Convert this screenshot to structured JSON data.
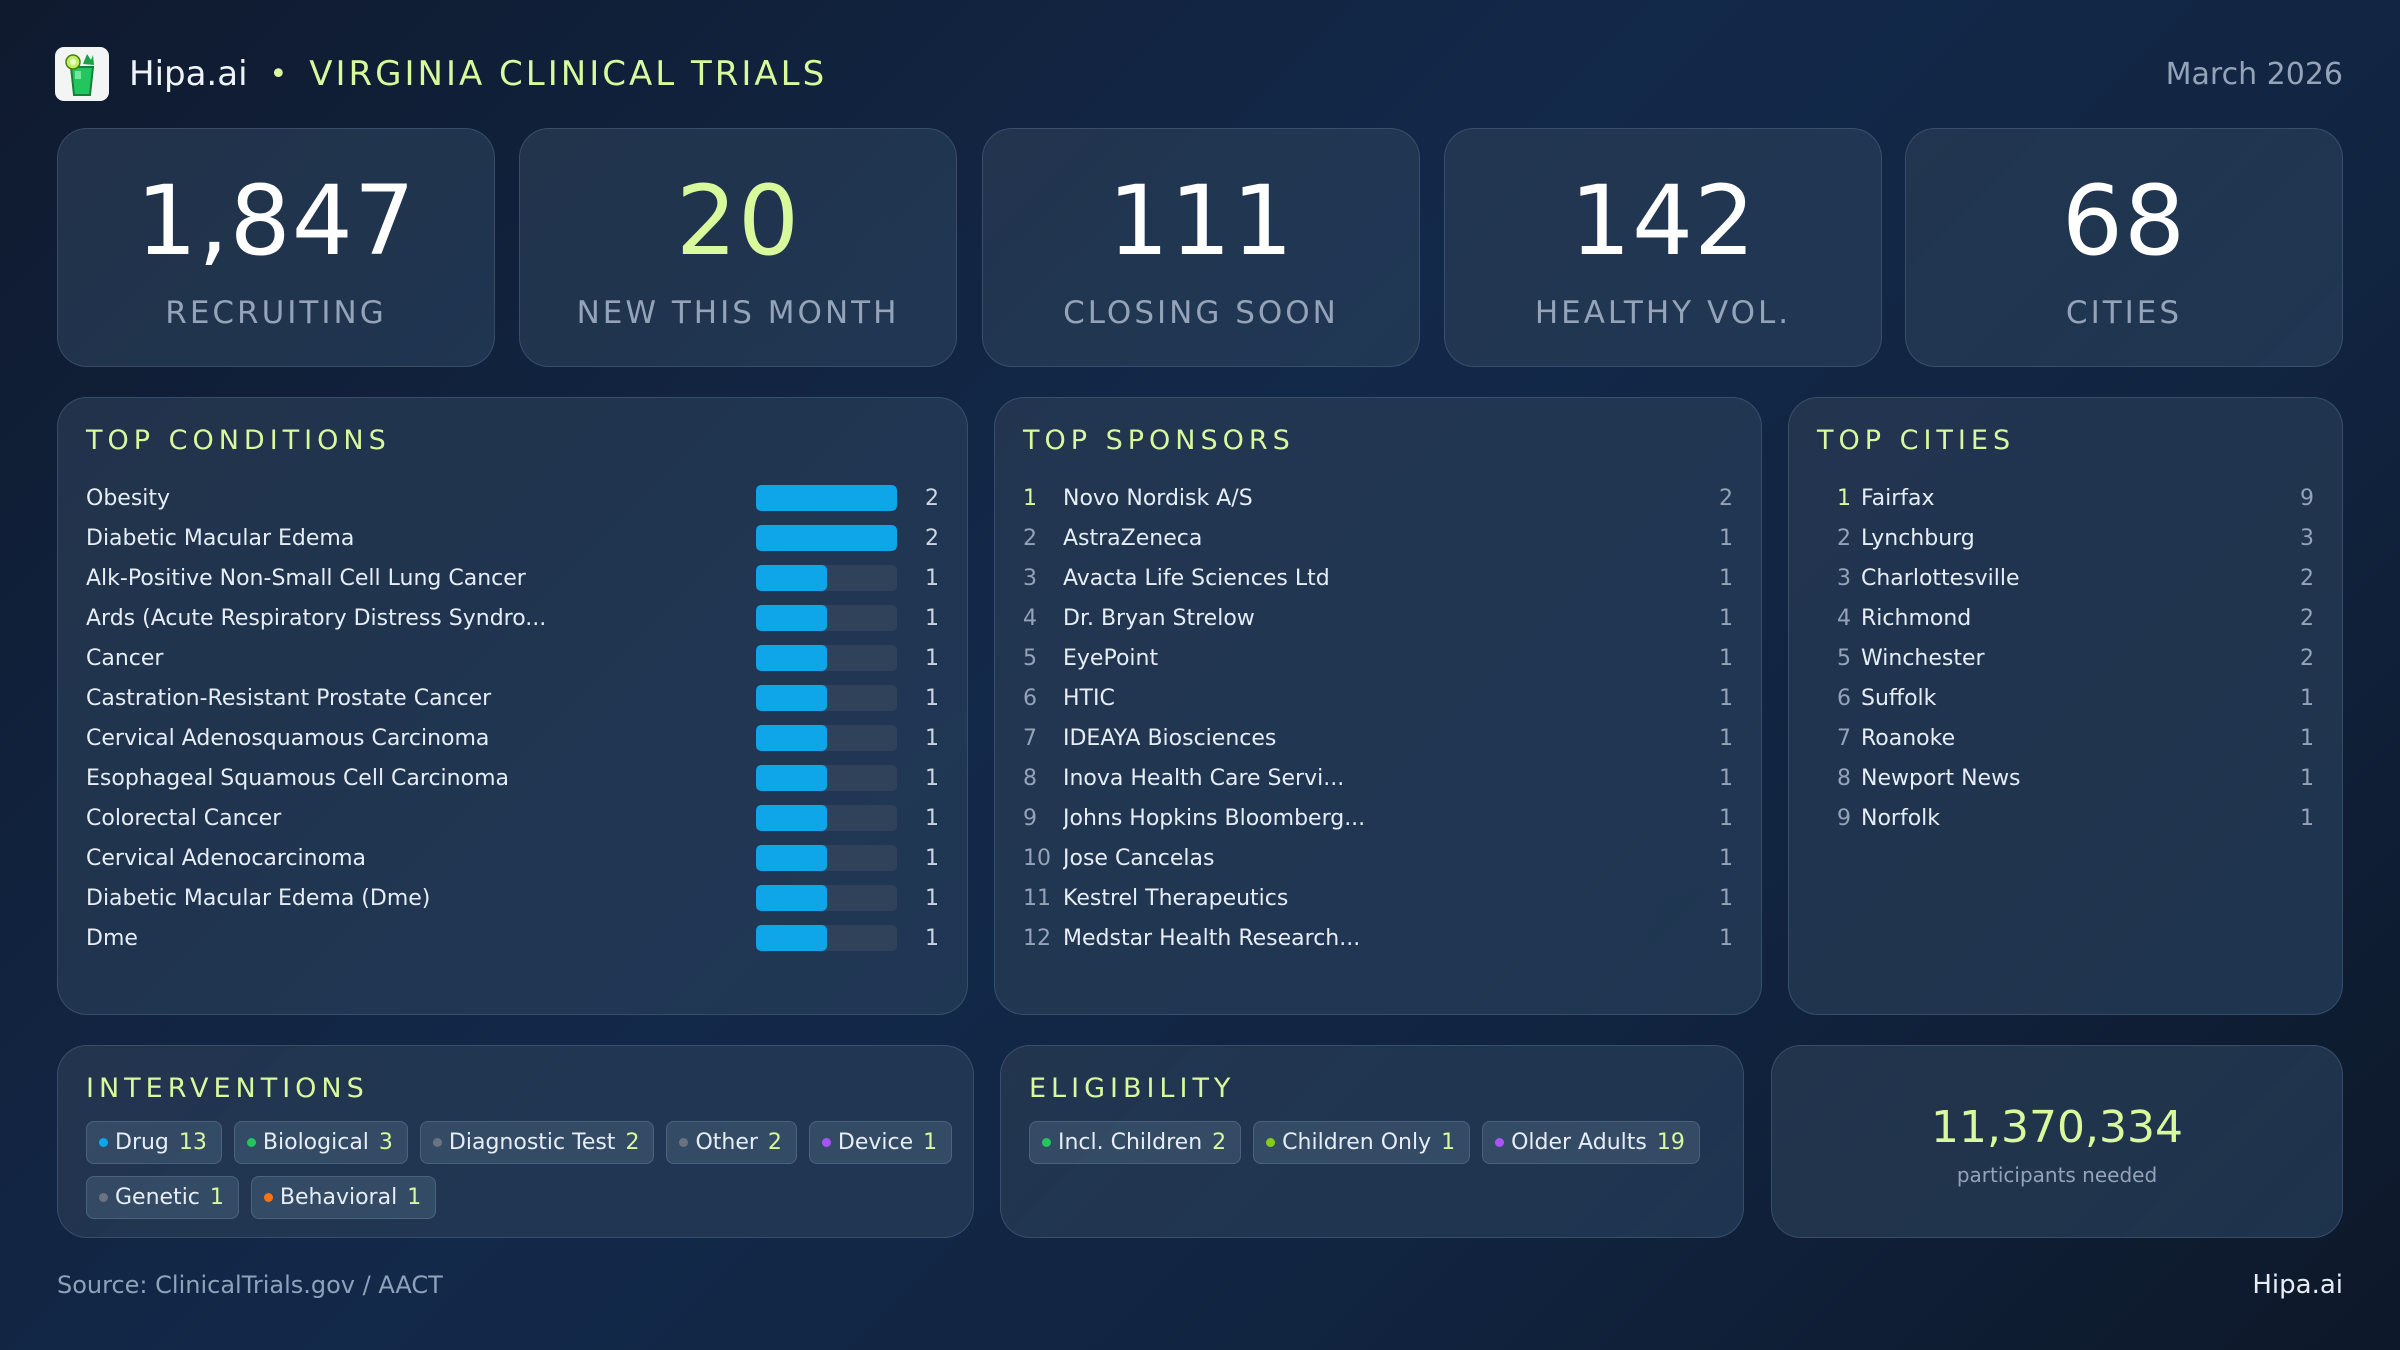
{
  "header": {
    "brand": "Hipa.ai",
    "separator": "•",
    "title": "VIRGINIA CLINICAL TRIALS",
    "date": "March 2026",
    "logo_icon": "mojito-glass-icon"
  },
  "stats": [
    {
      "value": "1,847",
      "label": "RECRUITING"
    },
    {
      "value": "20",
      "label": "NEW THIS MONTH"
    },
    {
      "value": "111",
      "label": "CLOSING SOON"
    },
    {
      "value": "142",
      "label": "HEALTHY VOL."
    },
    {
      "value": "68",
      "label": "CITIES"
    }
  ],
  "conditions": {
    "title": "TOP CONDITIONS",
    "bar_color": "#0ea5e9",
    "max": 2,
    "items": [
      {
        "name": "Obesity",
        "count": 2
      },
      {
        "name": "Diabetic Macular Edema",
        "count": 2
      },
      {
        "name": "Alk-Positive Non-Small Cell Lung Cancer",
        "count": 1
      },
      {
        "name": "Ards (Acute Respiratory Distress Syndro...",
        "count": 1
      },
      {
        "name": "Cancer",
        "count": 1
      },
      {
        "name": "Castration-Resistant Prostate Cancer",
        "count": 1
      },
      {
        "name": "Cervical Adenosquamous Carcinoma",
        "count": 1
      },
      {
        "name": "Esophageal Squamous Cell Carcinoma",
        "count": 1
      },
      {
        "name": "Colorectal Cancer",
        "count": 1
      },
      {
        "name": "Cervical Adenocarcinoma",
        "count": 1
      },
      {
        "name": "Diabetic Macular Edema (Dme)",
        "count": 1
      },
      {
        "name": "Dme",
        "count": 1
      }
    ]
  },
  "sponsors": {
    "title": "TOP SPONSORS",
    "items": [
      {
        "rank": "1",
        "name": "Novo Nordisk A/S",
        "count": 2
      },
      {
        "rank": "2",
        "name": "AstraZeneca",
        "count": 1
      },
      {
        "rank": "3",
        "name": "Avacta Life Sciences Ltd",
        "count": 1
      },
      {
        "rank": "4",
        "name": "Dr. Bryan Strelow",
        "count": 1
      },
      {
        "rank": "5",
        "name": "EyePoint",
        "count": 1
      },
      {
        "rank": "6",
        "name": "HTIC",
        "count": 1
      },
      {
        "rank": "7",
        "name": "IDEAYA Biosciences",
        "count": 1
      },
      {
        "rank": "8",
        "name": "Inova Health Care Servi...",
        "count": 1
      },
      {
        "rank": "9",
        "name": "Johns Hopkins Bloomberg...",
        "count": 1
      },
      {
        "rank": "10",
        "name": "Jose Cancelas",
        "count": 1
      },
      {
        "rank": "11",
        "name": "Kestrel Therapeutics",
        "count": 1
      },
      {
        "rank": "12",
        "name": "Medstar Health Research...",
        "count": 1
      }
    ]
  },
  "cities": {
    "title": "TOP CITIES",
    "items": [
      {
        "rank": "1",
        "name": "Fairfax",
        "count": 9
      },
      {
        "rank": "2",
        "name": "Lynchburg",
        "count": 3
      },
      {
        "rank": "3",
        "name": "Charlottesville",
        "count": 2
      },
      {
        "rank": "4",
        "name": "Richmond",
        "count": 2
      },
      {
        "rank": "5",
        "name": "Winchester",
        "count": 2
      },
      {
        "rank": "6",
        "name": "Suffolk",
        "count": 1
      },
      {
        "rank": "7",
        "name": "Roanoke",
        "count": 1
      },
      {
        "rank": "8",
        "name": "Newport News",
        "count": 1
      },
      {
        "rank": "9",
        "name": "Norfolk",
        "count": 1
      }
    ]
  },
  "interventions": {
    "title": "INTERVENTIONS",
    "items": [
      {
        "name": "Drug",
        "count": 13,
        "color": "#0ea5e9"
      },
      {
        "name": "Biological",
        "count": 3,
        "color": "#22c55e"
      },
      {
        "name": "Diagnostic Test",
        "count": 2,
        "color": "#6b7280"
      },
      {
        "name": "Other",
        "count": 2,
        "color": "#6b7280"
      },
      {
        "name": "Device",
        "count": 1,
        "color": "#a855f7"
      },
      {
        "name": "Genetic",
        "count": 1,
        "color": "#6b7280"
      },
      {
        "name": "Behavioral",
        "count": 1,
        "color": "#f97316"
      }
    ]
  },
  "eligibility": {
    "title": "ELIGIBILITY",
    "items": [
      {
        "name": "Incl. Children",
        "count": 2,
        "color": "#22c55e"
      },
      {
        "name": "Children Only",
        "count": 1,
        "color": "#84cc16"
      },
      {
        "name": "Older Adults",
        "count": 19,
        "color": "#a855f7"
      }
    ]
  },
  "participants": {
    "value": "11,370,334",
    "label": "participants needed"
  },
  "footer": {
    "source": "Source: ClinicalTrials.gov / AACT",
    "brand": "Hipa.ai"
  },
  "colors": {
    "accent": "#d9f99d",
    "bar": "#0ea5e9",
    "muted": "#94a3b8"
  }
}
